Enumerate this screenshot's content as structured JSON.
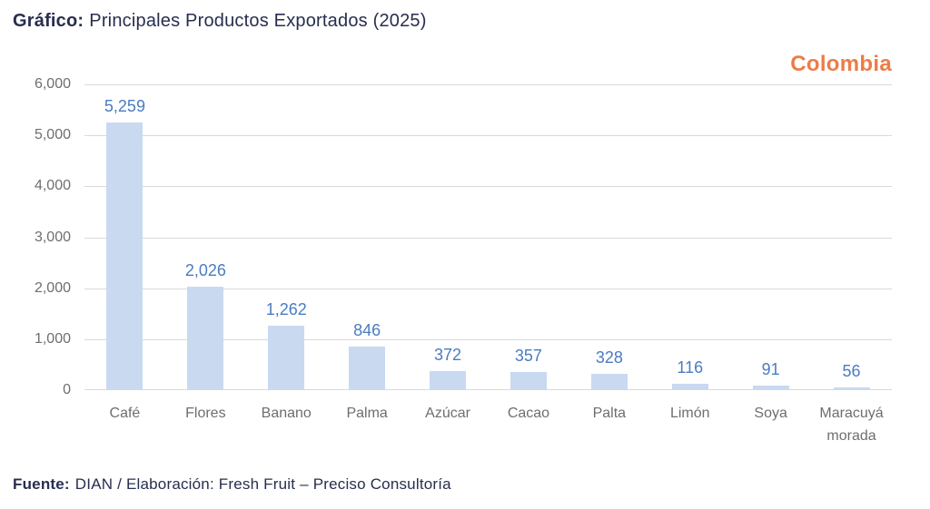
{
  "header": {
    "title_label": "Gráfico:",
    "title_text": "Principales Productos Exportados (2025)",
    "brand": "Colombia"
  },
  "chart_data": {
    "type": "bar",
    "title": "Principales Productos Exportados (2025)",
    "xlabel": "",
    "ylabel": "",
    "categories": [
      "Café",
      "Flores",
      "Banano",
      "Palma",
      "Azúcar",
      "Cacao",
      "Palta",
      "Limón",
      "Soya",
      "Maracuyá morada"
    ],
    "values": [
      5259,
      2026,
      1262,
      846,
      372,
      357,
      328,
      116,
      91,
      56
    ],
    "value_labels": [
      "5,259",
      "2,026",
      "1,262",
      "846",
      "372",
      "357",
      "328",
      "116",
      "91",
      "56"
    ],
    "ylim": [
      0,
      6000
    ],
    "ytick_interval": 1000,
    "ytick_labels": [
      "0",
      "1,000",
      "2,000",
      "3,000",
      "4,000",
      "5,000",
      "6,000"
    ],
    "grid": true,
    "legend": "none",
    "bar_color": "#c9d9f0",
    "value_label_color": "#4a7cc2",
    "axis_label_color": "#6e6e6e",
    "gridline_color": "#d9d9d9"
  },
  "footer": {
    "label": "Fuente:",
    "text": "DIAN / Elaboración: Fresh Fruit – Preciso Consultoría"
  },
  "colors": {
    "title_navy": "#272e4f",
    "brand_orange": "#ee7b47"
  }
}
